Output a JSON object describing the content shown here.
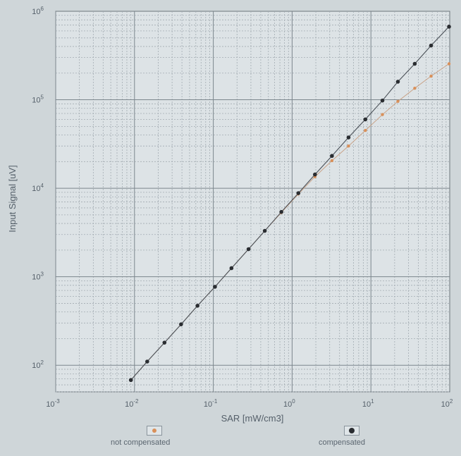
{
  "chart_data": {
    "type": "scatter",
    "title": "",
    "xlabel": "SAR [mW/cm3]",
    "ylabel": "Input Signal [uV]",
    "x_scale": "log",
    "y_scale": "log",
    "xlim": [
      0.001,
      100
    ],
    "ylim": [
      50,
      1000000
    ],
    "grid": true,
    "x_ticks": [
      {
        "value": 0.001,
        "base": "10",
        "exp": "-3"
      },
      {
        "value": 0.01,
        "base": "10",
        "exp": "-2"
      },
      {
        "value": 0.1,
        "base": "10",
        "exp": "-1"
      },
      {
        "value": 1,
        "base": "10",
        "exp": "0"
      },
      {
        "value": 10,
        "base": "10",
        "exp": "1"
      },
      {
        "value": 100,
        "base": "10",
        "exp": "2"
      }
    ],
    "y_ticks": [
      {
        "value": 100,
        "base": "10",
        "exp": "2"
      },
      {
        "value": 1000,
        "base": "10",
        "exp": "3"
      },
      {
        "value": 10000,
        "base": "10",
        "exp": "4"
      },
      {
        "value": 100000,
        "base": "10",
        "exp": "5"
      },
      {
        "value": 1000000,
        "base": "10",
        "exp": "6"
      }
    ],
    "legend_position": "bottom",
    "series": [
      {
        "name": "not compensated",
        "color": "#d9905a",
        "points": [
          [
            0.009,
            68
          ],
          [
            0.0145,
            110
          ],
          [
            0.024,
            180
          ],
          [
            0.039,
            290
          ],
          [
            0.063,
            470
          ],
          [
            0.105,
            770
          ],
          [
            0.17,
            1250
          ],
          [
            0.28,
            2050
          ],
          [
            0.45,
            3300
          ],
          [
            0.73,
            5300
          ],
          [
            1.2,
            8600
          ],
          [
            1.95,
            13500
          ],
          [
            3.2,
            20500
          ],
          [
            5.2,
            30000
          ],
          [
            8.5,
            45000
          ],
          [
            14,
            68000
          ],
          [
            22,
            96000
          ],
          [
            36,
            135000
          ],
          [
            58,
            185000
          ],
          [
            98,
            255000
          ]
        ]
      },
      {
        "name": "compensated",
        "color": "#2a2d31",
        "points": [
          [
            0.009,
            68
          ],
          [
            0.0145,
            110
          ],
          [
            0.024,
            180
          ],
          [
            0.039,
            290
          ],
          [
            0.063,
            470
          ],
          [
            0.105,
            770
          ],
          [
            0.17,
            1250
          ],
          [
            0.28,
            2050
          ],
          [
            0.45,
            3300
          ],
          [
            0.73,
            5400
          ],
          [
            1.2,
            8800
          ],
          [
            1.95,
            14300
          ],
          [
            3.2,
            23200
          ],
          [
            5.2,
            37500
          ],
          [
            8.5,
            60000
          ],
          [
            14,
            98000
          ],
          [
            22,
            160000
          ],
          [
            36,
            255000
          ],
          [
            58,
            410000
          ],
          [
            98,
            670000
          ]
        ]
      }
    ]
  }
}
